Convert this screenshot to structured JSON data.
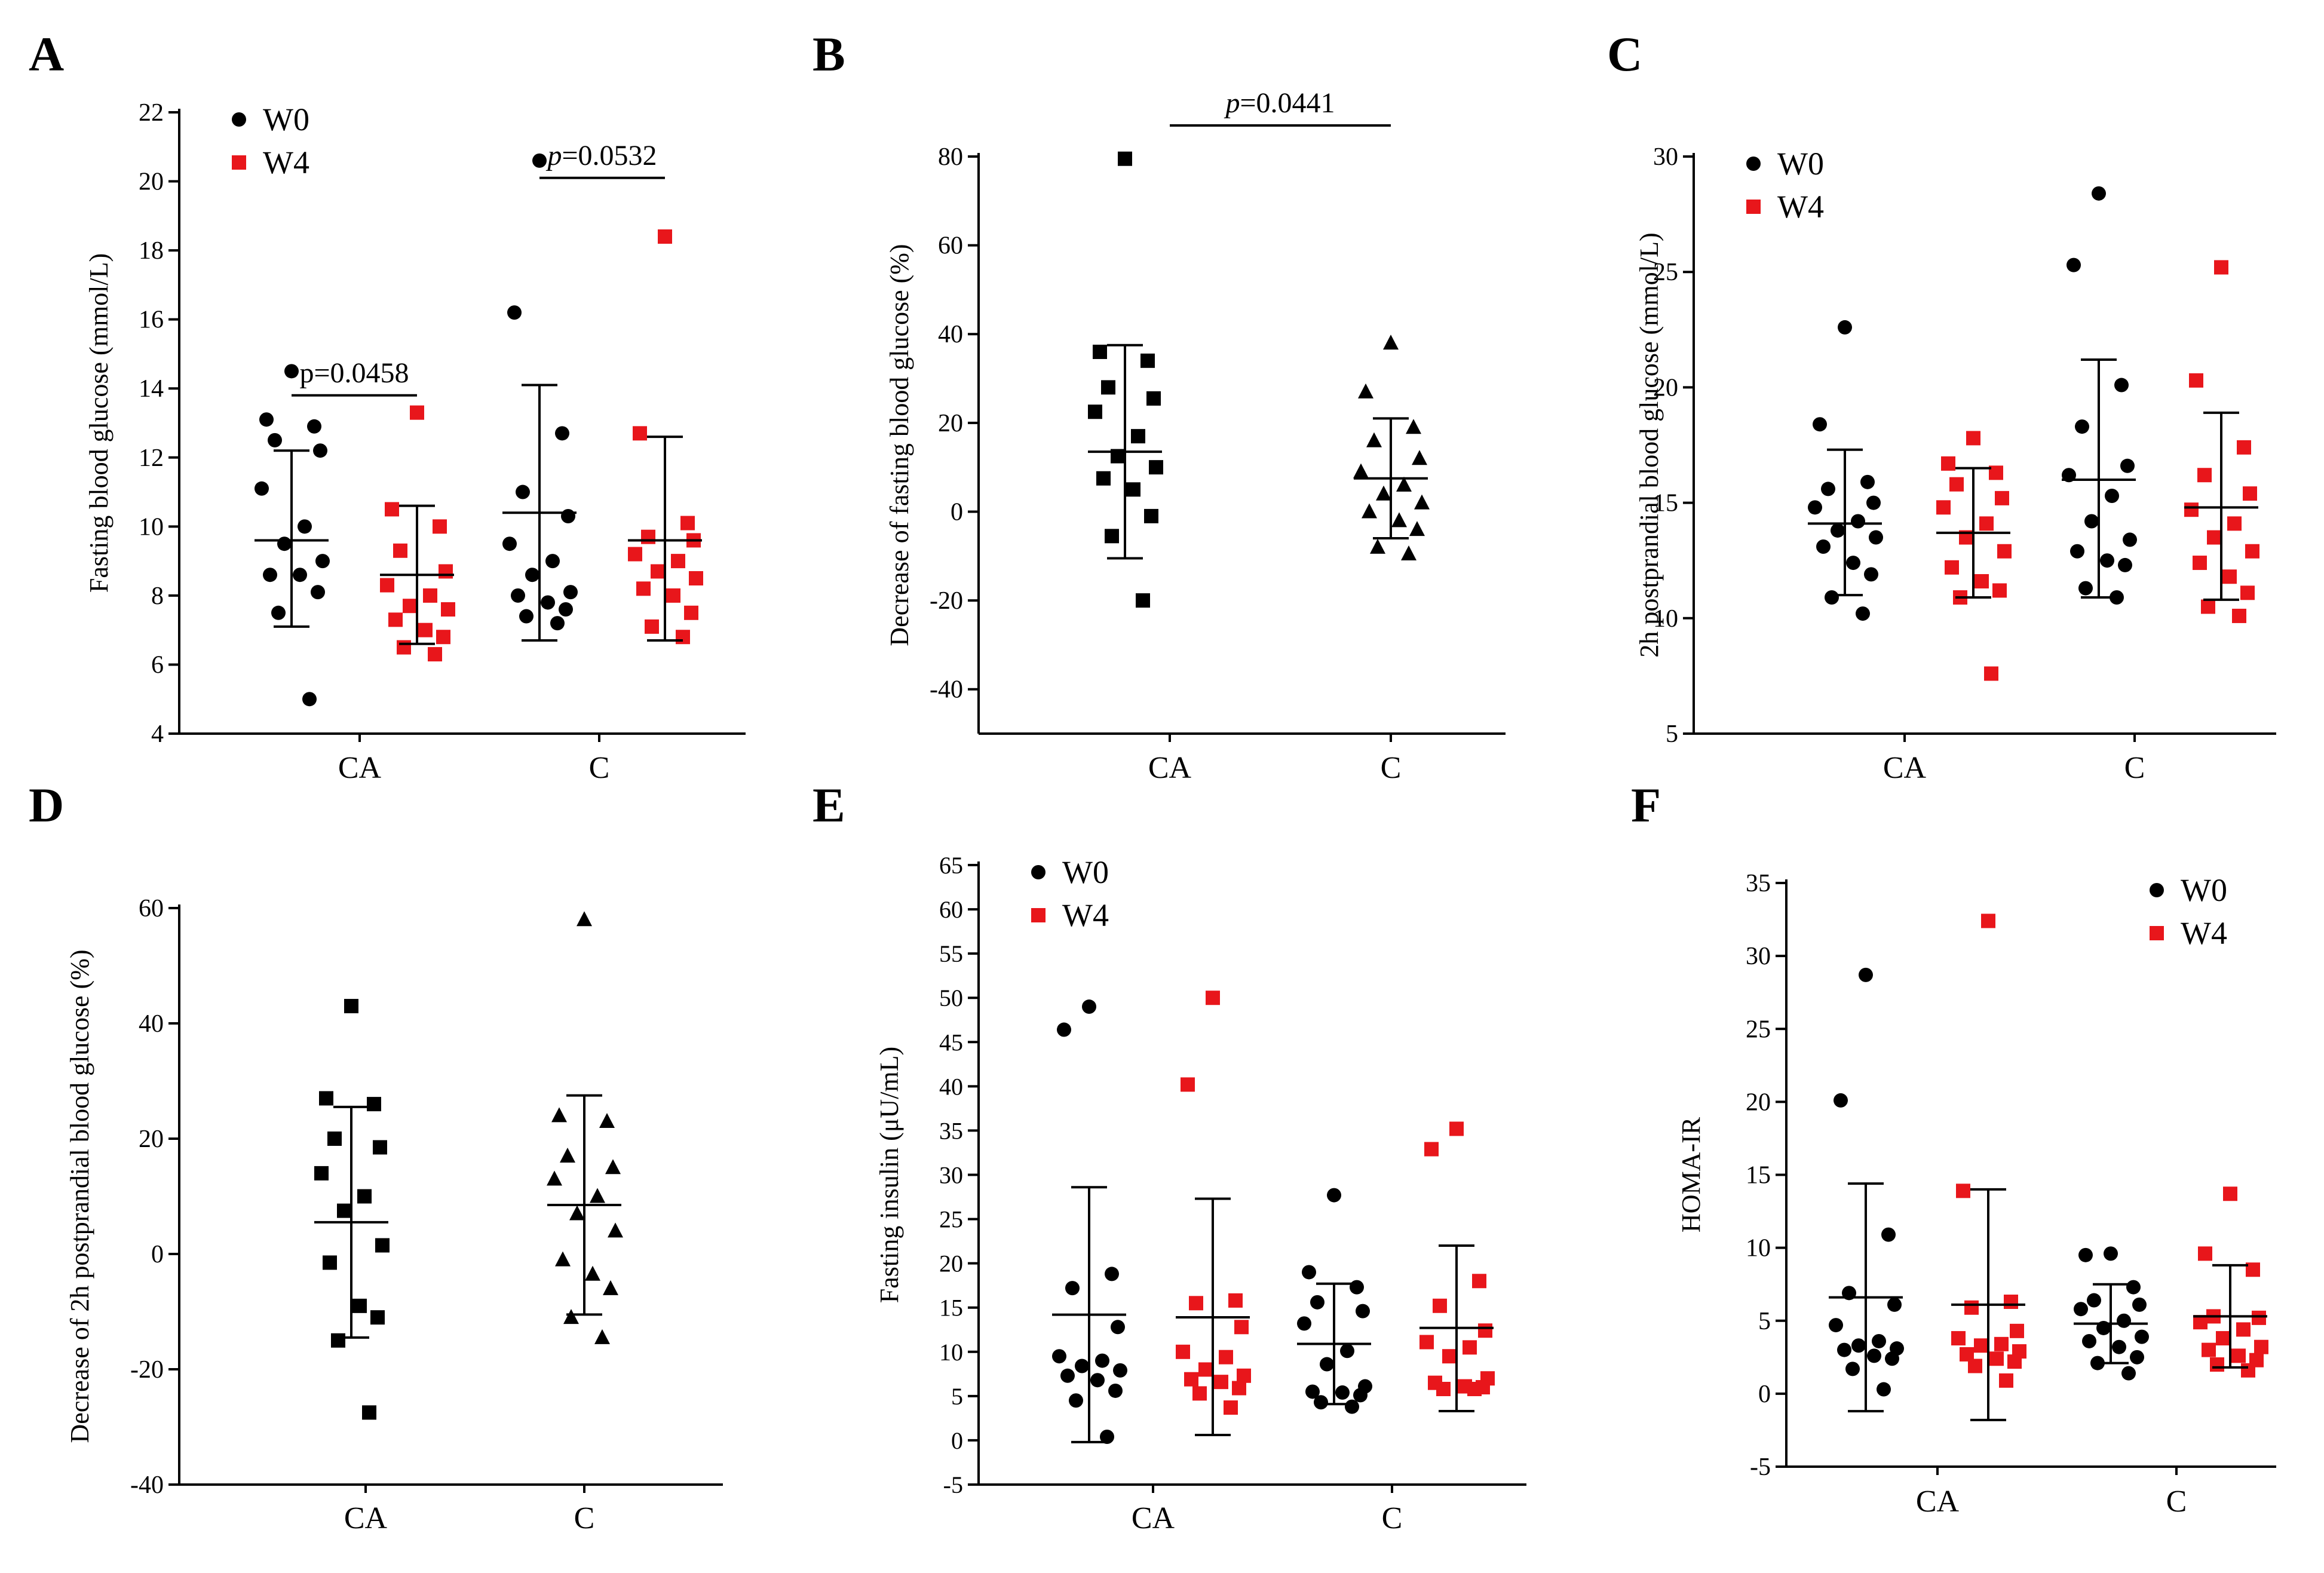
{
  "colors": {
    "w0": "#000000",
    "w4": "#e8161b",
    "axis": "#000000"
  },
  "chart_data": [
    {
      "panel": "A",
      "type": "scatter",
      "subtype": "grouped-dot",
      "ylabel": "Fasting blood glucose (mmol/L)",
      "xlabel": "",
      "categories": [
        "CA",
        "C"
      ],
      "ylim": [
        4,
        22
      ],
      "yticks": [
        4,
        6,
        8,
        10,
        12,
        14,
        16,
        18,
        20,
        22
      ],
      "legend": {
        "position": "top-left",
        "entries": [
          {
            "name": "W0",
            "marker": "circle",
            "color": "#000000"
          },
          {
            "name": "W4",
            "marker": "square",
            "color": "#e8161b"
          }
        ]
      },
      "series": [
        {
          "category": "CA",
          "name": "W0",
          "marker": "circle",
          "color": "#000000",
          "mean": 9.6,
          "sd_upper": 12.2,
          "sd_lower": 7.1,
          "values": [
            14.5,
            13.1,
            12.9,
            12.5,
            12.2,
            11.1,
            10.0,
            9.5,
            9.0,
            8.6,
            8.6,
            8.1,
            7.5,
            5.0
          ]
        },
        {
          "category": "CA",
          "name": "W4",
          "marker": "square",
          "color": "#e8161b",
          "mean": 8.6,
          "sd_upper": 10.6,
          "sd_lower": 6.6,
          "values": [
            13.3,
            10.5,
            10.0,
            9.3,
            8.7,
            8.3,
            8.0,
            7.7,
            7.6,
            7.3,
            7.0,
            6.8,
            6.5,
            6.3
          ]
        },
        {
          "category": "C",
          "name": "W0",
          "marker": "circle",
          "color": "#000000",
          "mean": 10.4,
          "sd_upper": 14.1,
          "sd_lower": 6.7,
          "values": [
            20.6,
            16.2,
            12.7,
            11.0,
            10.3,
            9.5,
            9.0,
            8.6,
            8.1,
            8.0,
            7.8,
            7.6,
            7.4,
            7.2
          ]
        },
        {
          "category": "C",
          "name": "W4",
          "marker": "square",
          "color": "#e8161b",
          "mean": 9.6,
          "sd_upper": 12.6,
          "sd_lower": 6.7,
          "values": [
            18.4,
            12.7,
            10.1,
            9.7,
            9.6,
            9.2,
            9.0,
            8.7,
            8.5,
            8.2,
            8.0,
            7.5,
            7.1,
            6.8
          ]
        }
      ],
      "annotations": [
        {
          "text": "p=0.0458",
          "italic_p": false,
          "category": "CA",
          "y": 13.8
        },
        {
          "text": "=0.0532",
          "italic_p": true,
          "category": "C",
          "y": 20.1
        }
      ]
    },
    {
      "panel": "B",
      "type": "scatter",
      "subtype": "grouped-dot",
      "ylabel": "Decrease of fasting blood glucose (%)",
      "xlabel": "",
      "categories": [
        "CA",
        "C"
      ],
      "ylim": [
        -50,
        80
      ],
      "yticks": [
        -40,
        -20,
        0,
        20,
        40,
        60,
        80
      ],
      "series": [
        {
          "category": "CA",
          "name": "CA",
          "marker": "square",
          "color": "#000000",
          "mean": 13.5,
          "sd_upper": 37.5,
          "sd_lower": -10.5,
          "values": [
            79.5,
            36.0,
            34.0,
            28.0,
            25.5,
            22.5,
            17.0,
            12.5,
            10.0,
            7.5,
            5.0,
            -1.0,
            -5.5,
            -20.0
          ]
        },
        {
          "category": "C",
          "name": "C",
          "marker": "triangle",
          "color": "#000000",
          "mean": 7.5,
          "sd_upper": 21.0,
          "sd_lower": -6.0,
          "values": [
            38.0,
            27.0,
            19.0,
            16.0,
            12.0,
            9.0,
            6.0,
            4.0,
            2.0,
            0.0,
            -2.0,
            -4.0,
            -8.0,
            -9.5
          ]
        }
      ],
      "annotations": [
        {
          "text": "=0.0441",
          "italic_p": true,
          "category": "middle",
          "y": 87.0
        }
      ]
    },
    {
      "panel": "C",
      "type": "scatter",
      "subtype": "grouped-dot",
      "ylabel": "2h postprandial blood glucose (mmol/L)",
      "xlabel": "",
      "categories": [
        "CA",
        "C"
      ],
      "ylim": [
        5,
        30
      ],
      "yticks": [
        5,
        10,
        15,
        20,
        25,
        30
      ],
      "legend": {
        "position": "top-left",
        "entries": [
          {
            "name": "W0",
            "marker": "circle",
            "color": "#000000"
          },
          {
            "name": "W4",
            "marker": "square",
            "color": "#e8161b"
          }
        ]
      },
      "series": [
        {
          "category": "CA",
          "name": "W0",
          "marker": "circle",
          "color": "#000000",
          "mean": 14.1,
          "sd_upper": 17.3,
          "sd_lower": 11.0,
          "values": [
            22.6,
            18.4,
            15.9,
            15.6,
            15.0,
            14.8,
            14.2,
            13.8,
            13.5,
            13.1,
            12.4,
            11.9,
            10.9,
            10.2
          ]
        },
        {
          "category": "CA",
          "name": "W4",
          "marker": "square",
          "color": "#e8161b",
          "mean": 13.7,
          "sd_upper": 16.5,
          "sd_lower": 10.9,
          "values": [
            17.8,
            16.7,
            16.3,
            15.8,
            15.2,
            14.8,
            14.1,
            13.5,
            12.9,
            12.2,
            11.6,
            11.2,
            10.9,
            7.6
          ]
        },
        {
          "category": "C",
          "name": "W0",
          "marker": "circle",
          "color": "#000000",
          "mean": 16.0,
          "sd_upper": 21.2,
          "sd_lower": 10.9,
          "values": [
            28.4,
            25.3,
            20.1,
            18.3,
            16.6,
            16.2,
            15.3,
            14.2,
            13.4,
            12.9,
            12.5,
            12.3,
            11.3,
            10.9
          ]
        },
        {
          "category": "C",
          "name": "W4",
          "marker": "square",
          "color": "#e8161b",
          "mean": 14.8,
          "sd_upper": 18.9,
          "sd_lower": 10.8,
          "values": [
            25.2,
            20.3,
            17.4,
            16.2,
            15.4,
            14.7,
            14.1,
            13.5,
            12.9,
            12.4,
            11.8,
            11.1,
            10.5,
            10.1
          ]
        }
      ]
    },
    {
      "panel": "D",
      "type": "scatter",
      "subtype": "grouped-dot",
      "ylabel": "Decrease of 2h postprandial blood glucose (%)",
      "xlabel": "",
      "categories": [
        "CA",
        "C"
      ],
      "ylim": [
        -40,
        60
      ],
      "yticks": [
        -40,
        -20,
        0,
        20,
        40,
        60
      ],
      "series": [
        {
          "category": "CA",
          "name": "CA",
          "marker": "square",
          "color": "#000000",
          "mean": 5.5,
          "sd_upper": 25.5,
          "sd_lower": -14.5,
          "values": [
            43.0,
            27.0,
            26.0,
            20.0,
            18.5,
            14.0,
            10.0,
            7.5,
            1.5,
            -1.5,
            -9.0,
            -11.0,
            -15.0,
            -27.5
          ]
        },
        {
          "category": "C",
          "name": "C",
          "marker": "triangle",
          "color": "#000000",
          "mean": 8.5,
          "sd_upper": 27.5,
          "sd_lower": -10.5,
          "values": [
            58.0,
            24.0,
            23.0,
            17.0,
            15.0,
            13.0,
            10.0,
            7.0,
            4.0,
            -1.0,
            -3.5,
            -6.0,
            -11.0,
            -14.5
          ]
        }
      ]
    },
    {
      "panel": "E",
      "type": "scatter",
      "subtype": "grouped-dot",
      "ylabel": "Fasting insulin (μU/mL)",
      "xlabel": "",
      "categories": [
        "CA",
        "C"
      ],
      "ylim": [
        -5,
        65
      ],
      "yticks": [
        -5,
        0,
        5,
        10,
        15,
        20,
        25,
        30,
        35,
        40,
        45,
        50,
        55,
        60,
        65
      ],
      "legend": {
        "position": "top-left",
        "entries": [
          {
            "name": "W0",
            "marker": "circle",
            "color": "#000000"
          },
          {
            "name": "W4",
            "marker": "square",
            "color": "#e8161b"
          }
        ]
      },
      "series": [
        {
          "category": "CA",
          "name": "W0",
          "marker": "circle",
          "color": "#000000",
          "mean": 14.2,
          "sd_upper": 28.6,
          "sd_lower": -0.2,
          "values": [
            49.0,
            46.4,
            18.8,
            17.2,
            12.8,
            9.5,
            9.0,
            8.4,
            7.9,
            7.3,
            6.8,
            5.6,
            4.5,
            0.4
          ]
        },
        {
          "category": "CA",
          "name": "W4",
          "marker": "square",
          "color": "#e8161b",
          "mean": 13.9,
          "sd_upper": 27.3,
          "sd_lower": 0.6,
          "values": [
            50.0,
            40.2,
            15.8,
            15.5,
            12.8,
            10.0,
            9.4,
            8.0,
            7.3,
            6.9,
            6.6,
            5.9,
            5.3,
            3.7
          ]
        },
        {
          "category": "C",
          "name": "W0",
          "marker": "circle",
          "color": "#000000",
          "mean": 10.9,
          "sd_upper": 17.7,
          "sd_lower": 4.1,
          "values": [
            27.7,
            19.0,
            17.3,
            15.6,
            14.6,
            13.2,
            10.1,
            8.6,
            6.1,
            5.5,
            5.4,
            5.1,
            4.3,
            3.8
          ]
        },
        {
          "category": "C",
          "name": "W4",
          "marker": "square",
          "color": "#e8161b",
          "mean": 12.7,
          "sd_upper": 22.0,
          "sd_lower": 3.3,
          "values": [
            35.2,
            32.9,
            18.0,
            15.2,
            12.4,
            11.1,
            10.5,
            9.5,
            7.0,
            6.5,
            6.1,
            6.0,
            5.8,
            5.8
          ]
        }
      ]
    },
    {
      "panel": "F",
      "type": "scatter",
      "subtype": "grouped-dot",
      "ylabel": "HOMA-IR",
      "xlabel": "",
      "categories": [
        "CA",
        "C"
      ],
      "ylim": [
        -5,
        35
      ],
      "yticks": [
        -5,
        0,
        5,
        10,
        15,
        20,
        25,
        30,
        35
      ],
      "legend": {
        "position": "top-right",
        "entries": [
          {
            "name": "W0",
            "marker": "circle",
            "color": "#000000"
          },
          {
            "name": "W4",
            "marker": "square",
            "color": "#e8161b"
          }
        ]
      },
      "series": [
        {
          "category": "CA",
          "name": "W0",
          "marker": "circle",
          "color": "#000000",
          "mean": 6.6,
          "sd_upper": 14.4,
          "sd_lower": -1.2,
          "values": [
            28.7,
            20.1,
            10.9,
            6.9,
            6.1,
            4.7,
            3.6,
            3.3,
            3.1,
            3.0,
            2.6,
            2.4,
            1.7,
            0.3
          ]
        },
        {
          "category": "CA",
          "name": "W4",
          "marker": "square",
          "color": "#e8161b",
          "mean": 6.1,
          "sd_upper": 14.0,
          "sd_lower": -1.8,
          "values": [
            32.4,
            13.9,
            6.3,
            5.9,
            4.3,
            3.8,
            3.4,
            3.3,
            2.9,
            2.7,
            2.4,
            2.2,
            1.9,
            0.9
          ]
        },
        {
          "category": "C",
          "name": "W0",
          "marker": "circle",
          "color": "#000000",
          "mean": 4.8,
          "sd_upper": 7.5,
          "sd_lower": 2.1,
          "values": [
            9.6,
            9.5,
            7.3,
            6.4,
            6.1,
            5.8,
            5.0,
            4.5,
            3.9,
            3.6,
            3.2,
            2.5,
            2.1,
            1.4
          ]
        },
        {
          "category": "C",
          "name": "W4",
          "marker": "square",
          "color": "#e8161b",
          "mean": 5.3,
          "sd_upper": 8.8,
          "sd_lower": 1.8,
          "values": [
            13.7,
            9.6,
            8.5,
            5.3,
            5.2,
            4.9,
            4.4,
            3.8,
            3.2,
            3.0,
            2.6,
            2.3,
            2.0,
            1.6
          ]
        }
      ]
    }
  ]
}
